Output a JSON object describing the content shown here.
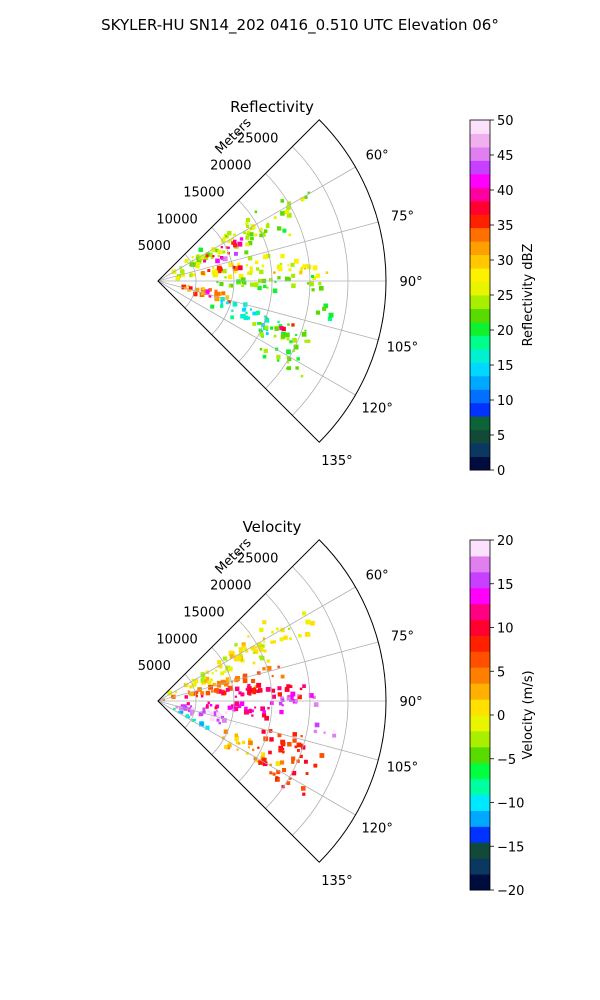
{
  "page_title": "SKYLER-HU  SN14_202  0416_0.510 UTC Elevation 06°",
  "colors": {
    "reflectivity_colormap": [
      "#000c3e",
      "#0a3860",
      "#124a3a",
      "#0e6238",
      "#0033ff",
      "#0070ff",
      "#00a8ff",
      "#00d8ff",
      "#00f0d0",
      "#00ff88",
      "#10f030",
      "#58dc00",
      "#a8ee00",
      "#e8f400",
      "#fff000",
      "#ffc800",
      "#ffa000",
      "#ff7000",
      "#ff2000",
      "#ff0030",
      "#ff00a0",
      "#ff00ff",
      "#c840ff",
      "#e080f0",
      "#f0b0f0",
      "#fce0fc"
    ],
    "velocity_colormap": [
      "#000c3e",
      "#0a3860",
      "#124a3a",
      "#0033ff",
      "#00a8ff",
      "#00e8ff",
      "#00ffa0",
      "#00ff40",
      "#58dc00",
      "#a8f000",
      "#e8f400",
      "#ffe000",
      "#ffb000",
      "#ff8000",
      "#ff5000",
      "#ff2000",
      "#ff0030",
      "#ff0080",
      "#ff00ff",
      "#c840ff",
      "#e080f0",
      "#fce0fc"
    ]
  },
  "chart_data": [
    {
      "type": "heatmap",
      "projection": "polar-sector",
      "title": "Reflectivity",
      "radial_label": "Meters",
      "radial_ticks": [
        5000,
        10000,
        15000,
        20000,
        25000
      ],
      "radial_tick_labels": [
        "5000",
        "10000",
        "15000",
        "20000",
        "25000"
      ],
      "r_max": 30000,
      "angle_ticks": [
        60,
        75,
        90,
        105,
        120,
        135
      ],
      "angle_tick_labels": [
        "60°",
        "75°",
        "90°",
        "105°",
        "120°",
        "135°"
      ],
      "angle_range_deg": [
        45,
        135
      ],
      "grid": true,
      "colorbar": {
        "label": "Reflectivity dBZ",
        "range": [
          0,
          50
        ],
        "ticks": [
          0,
          5,
          10,
          15,
          20,
          25,
          30,
          35,
          40,
          45,
          50
        ],
        "tick_labels": [
          "0",
          "5",
          "10",
          "15",
          "20",
          "25",
          "30",
          "35",
          "40",
          "45",
          "50"
        ]
      },
      "echo_cells": [
        {
          "az": 62,
          "r": 12500,
          "span_az": 14,
          "span_r": 16000,
          "value": 24
        },
        {
          "az": 65,
          "r": 11000,
          "span_az": 6,
          "span_r": 6000,
          "value": 38
        },
        {
          "az": 72,
          "r": 9500,
          "span_az": 4,
          "span_r": 3500,
          "value": 42
        },
        {
          "az": 82,
          "r": 12000,
          "span_az": 9,
          "span_r": 14000,
          "value": 26
        },
        {
          "az": 80,
          "r": 9000,
          "span_az": 4,
          "span_r": 5000,
          "value": 36
        },
        {
          "az": 86,
          "r": 18500,
          "span_az": 5,
          "span_r": 6000,
          "value": 28
        },
        {
          "az": 92,
          "r": 14000,
          "span_az": 6,
          "span_r": 14000,
          "value": 22
        },
        {
          "az": 103,
          "r": 6500,
          "span_az": 10,
          "span_r": 6000,
          "value": 32
        },
        {
          "az": 104,
          "r": 6000,
          "span_az": 4,
          "span_r": 2500,
          "value": 40
        },
        {
          "az": 110,
          "r": 12000,
          "span_az": 10,
          "span_r": 8000,
          "value": 17
        },
        {
          "az": 113,
          "r": 18000,
          "span_az": 8,
          "span_r": 8000,
          "value": 22
        },
        {
          "az": 110,
          "r": 17000,
          "span_az": 3,
          "span_r": 3000,
          "value": 38
        },
        {
          "az": 122,
          "r": 19000,
          "span_az": 7,
          "span_r": 6000,
          "value": 22
        },
        {
          "az": 100,
          "r": 22000,
          "span_az": 4,
          "span_r": 3000,
          "value": 20
        }
      ]
    },
    {
      "type": "heatmap",
      "projection": "polar-sector",
      "title": "Velocity",
      "radial_label": "Meters",
      "radial_ticks": [
        5000,
        10000,
        15000,
        20000,
        25000
      ],
      "radial_tick_labels": [
        "5000",
        "10000",
        "15000",
        "20000",
        "25000"
      ],
      "r_max": 30000,
      "angle_ticks": [
        60,
        75,
        90,
        105,
        120,
        135
      ],
      "angle_tick_labels": [
        "60°",
        "75°",
        "90°",
        "105°",
        "120°",
        "135°"
      ],
      "angle_range_deg": [
        45,
        135
      ],
      "grid": true,
      "colorbar": {
        "label": "Velocity (m/s)",
        "range": [
          -20,
          20
        ],
        "ticks": [
          -20,
          -15,
          -10,
          -5,
          0,
          5,
          10,
          15,
          20
        ],
        "tick_labels": [
          "−20",
          "−15",
          "−10",
          "−5",
          "0",
          "5",
          "10",
          "15",
          "20"
        ]
      },
      "echo_cells": [
        {
          "az": 62,
          "r": 12500,
          "span_az": 14,
          "span_r": 16000,
          "value": 0
        },
        {
          "az": 76,
          "r": 9000,
          "span_az": 10,
          "span_r": 12000,
          "value": 5
        },
        {
          "az": 84,
          "r": 12000,
          "span_az": 8,
          "span_r": 12000,
          "value": 10
        },
        {
          "az": 90,
          "r": 17500,
          "span_az": 6,
          "span_r": 6000,
          "value": 16
        },
        {
          "az": 96,
          "r": 10000,
          "span_az": 8,
          "span_r": 10000,
          "value": 12
        },
        {
          "az": 106,
          "r": 6000,
          "span_az": 10,
          "span_r": 8000,
          "value": 17
        },
        {
          "az": 118,
          "r": 4500,
          "span_az": 6,
          "span_r": 5000,
          "value": -10
        },
        {
          "az": 118,
          "r": 13000,
          "span_az": 10,
          "span_r": 7000,
          "value": 3
        },
        {
          "az": 110,
          "r": 18000,
          "span_az": 10,
          "span_r": 8000,
          "value": 8
        },
        {
          "az": 122,
          "r": 19000,
          "span_az": 7,
          "span_r": 6000,
          "value": 8
        },
        {
          "az": 100,
          "r": 22000,
          "span_az": 4,
          "span_r": 3000,
          "value": 16
        }
      ]
    }
  ]
}
